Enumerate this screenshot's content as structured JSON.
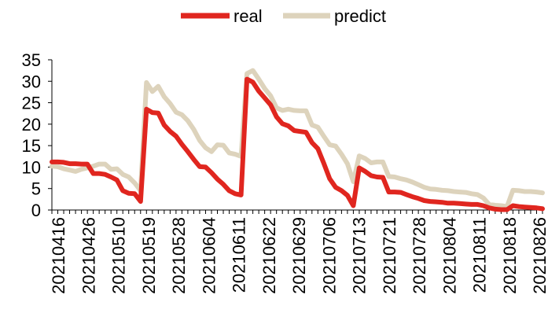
{
  "chart_data": {
    "type": "line",
    "title": "",
    "xlabel": "",
    "ylabel": "",
    "ylim": [
      0,
      35
    ],
    "yticks": [
      "0",
      "5",
      "10",
      "15",
      "20",
      "25",
      "30",
      "35"
    ],
    "x_tick_labels": [
      "20210416",
      "20210426",
      "20210510",
      "20210519",
      "20210528",
      "20210604",
      "20210611",
      "20210622",
      "20210629",
      "20210706",
      "20210713",
      "20210721",
      "20210728",
      "20210804",
      "20210811",
      "20210818",
      "20210826"
    ],
    "legend_position": "top-center",
    "grid": false,
    "series": [
      {
        "name": "real",
        "color": "#e0261f",
        "values": [
          11.2,
          11.2,
          11.1,
          10.8,
          10.8,
          10.7,
          10.7,
          8.5,
          8.5,
          8.3,
          7.7,
          7.0,
          4.5,
          3.9,
          3.8,
          2.0,
          23.5,
          22.7,
          22.6,
          19.8,
          18.3,
          17.2,
          15.3,
          13.6,
          11.8,
          10.1,
          10.0,
          8.7,
          7.2,
          6.0,
          4.5,
          3.8,
          3.5,
          30.5,
          29.8,
          27.7,
          26.1,
          24.5,
          21.7,
          20.1,
          19.6,
          18.5,
          18.3,
          18.1,
          15.7,
          14.3,
          10.9,
          7.3,
          5.3,
          4.5,
          3.4,
          1.0,
          9.8,
          9.0,
          8.0,
          7.7,
          7.6,
          4.2,
          4.2,
          4.1,
          3.6,
          3.1,
          2.7,
          2.2,
          2.0,
          1.9,
          1.8,
          1.6,
          1.6,
          1.5,
          1.4,
          1.3,
          1.3,
          1.0,
          0.5,
          0.2,
          0.1,
          0.1,
          1.0,
          0.8,
          0.7,
          0.6,
          0.5,
          0.3
        ]
      },
      {
        "name": "predict",
        "color": "#ddd3bc",
        "values": [
          10.2,
          10.1,
          9.6,
          9.3,
          9.0,
          9.5,
          9.8,
          10.2,
          10.7,
          10.7,
          9.5,
          9.6,
          8.3,
          7.7,
          6.3,
          4.5,
          29.7,
          27.6,
          28.8,
          26.4,
          24.8,
          22.8,
          22.2,
          20.8,
          18.8,
          16.2,
          14.5,
          13.6,
          15.2,
          15.1,
          13.3,
          13.0,
          12.5,
          31.8,
          32.5,
          30.5,
          28.3,
          26.6,
          23.8,
          23.2,
          23.5,
          23.2,
          23.1,
          23.1,
          19.8,
          19.3,
          17.2,
          15.2,
          14.9,
          13.0,
          10.8,
          6.6,
          12.6,
          12.0,
          11.0,
          11.2,
          11.2,
          7.8,
          7.7,
          7.3,
          7.0,
          6.5,
          5.9,
          5.3,
          4.9,
          4.8,
          4.6,
          4.5,
          4.3,
          4.2,
          4.1,
          3.8,
          3.6,
          2.8,
          1.3,
          1.1,
          1.0,
          0.8,
          4.6,
          4.5,
          4.3,
          4.3,
          4.2,
          4.0
        ]
      }
    ]
  }
}
